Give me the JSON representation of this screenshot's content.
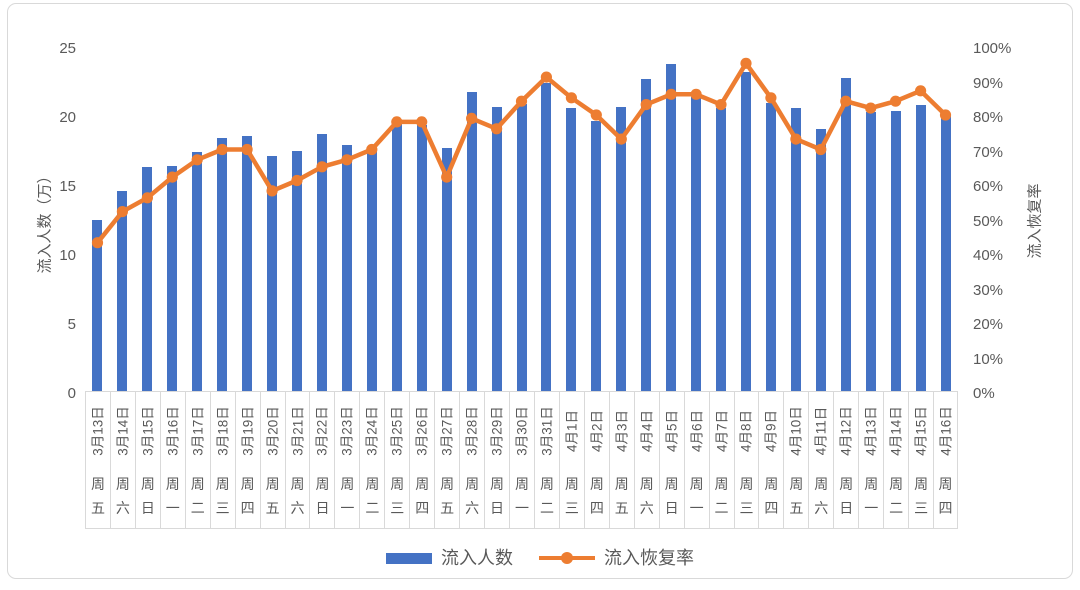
{
  "colors": {
    "bar": "#4472C4",
    "line": "#ED7D31",
    "text": "#595959",
    "grid_border": "#D9D9D9"
  },
  "chart_data": {
    "type": "bar+line",
    "grid": false,
    "legend_position": "bottom",
    "dates": [
      "3月13日",
      "3月14日",
      "3月15日",
      "3月16日",
      "3月17日",
      "3月18日",
      "3月19日",
      "3月20日",
      "3月21日",
      "3月22日",
      "3月23日",
      "3月24日",
      "3月25日",
      "3月26日",
      "3月27日",
      "3月28日",
      "3月29日",
      "3月30日",
      "3月31日",
      "4月1日",
      "4月2日",
      "4月3日",
      "4月4日",
      "4月5日",
      "4月6日",
      "4月7日",
      "4月8日",
      "4月9日",
      "4月10日",
      "4月11日",
      "4月12日",
      "4月13日",
      "4月14日",
      "4月15日",
      "4月16日"
    ],
    "weekdays": [
      "周五",
      "周六",
      "周日",
      "周一",
      "周二",
      "周三",
      "周四",
      "周五",
      "周六",
      "周日",
      "周一",
      "周二",
      "周三",
      "周四",
      "周五",
      "周六",
      "周日",
      "周一",
      "周二",
      "周三",
      "周四",
      "周五",
      "周六",
      "周日",
      "周一",
      "周二",
      "周三",
      "周四",
      "周五",
      "周六",
      "周日",
      "周一",
      "周二",
      "周三",
      "周四"
    ],
    "series": [
      {
        "name": "流入人数",
        "type": "bar",
        "axis": "left",
        "color": "#4472C4",
        "values": [
          12.4,
          14.5,
          16.2,
          16.3,
          17.3,
          18.3,
          18.5,
          17.0,
          17.4,
          18.6,
          17.8,
          17.5,
          19.4,
          19.3,
          17.6,
          21.7,
          20.6,
          20.8,
          22.3,
          20.5,
          19.6,
          20.6,
          22.6,
          23.7,
          21.3,
          20.5,
          23.1,
          20.9,
          20.5,
          19.0,
          22.7,
          20.2,
          20.3,
          20.7,
          19.9
        ]
      },
      {
        "name": "流入恢复率",
        "type": "line",
        "axis": "right",
        "color": "#ED7D31",
        "values_pct": [
          43,
          52,
          56,
          62,
          67,
          70,
          70,
          58,
          61,
          65,
          67,
          70,
          78,
          78,
          62,
          79,
          76,
          84,
          91,
          85,
          80,
          73,
          83,
          86,
          86,
          83,
          95,
          85,
          73,
          70,
          84,
          82,
          84,
          87,
          80
        ]
      }
    ],
    "left_axis": {
      "title": "流入人数（万）",
      "min": 0,
      "max": 25,
      "ticks": [
        0,
        5,
        10,
        15,
        20,
        25
      ]
    },
    "right_axis": {
      "title": "流入恢复率",
      "min": 0,
      "max": 100,
      "ticks": [
        0,
        10,
        20,
        30,
        40,
        50,
        60,
        70,
        80,
        90,
        100
      ],
      "suffix": "%"
    }
  },
  "legend": {
    "items": [
      {
        "label": "流入人数"
      },
      {
        "label": "流入恢复率"
      }
    ]
  }
}
